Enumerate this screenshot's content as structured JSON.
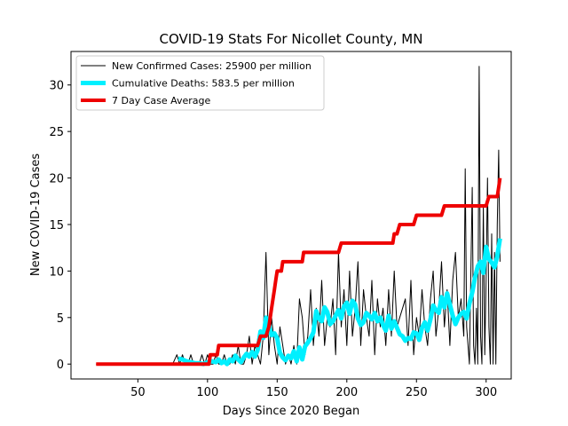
{
  "chart_data": {
    "type": "line",
    "title": "COVID-19 Stats For Nicollet County, MN",
    "xlabel": "Days Since 2020 Began",
    "ylabel": "New COVID-19 Cases",
    "xlim": [
      2,
      318
    ],
    "ylim": [
      -1.6,
      33.6
    ],
    "xticks": [
      50,
      100,
      150,
      200,
      250,
      300
    ],
    "yticks": [
      0,
      5,
      10,
      15,
      20,
      25,
      30
    ],
    "grid": false,
    "legend_position": "top-left",
    "series": [
      {
        "name": "New Confirmed Cases: 25900 per million",
        "color": "#000000",
        "x": [
          20,
          75,
          78,
          80,
          82,
          84,
          86,
          88,
          90,
          92,
          94,
          96,
          98,
          100,
          102,
          104,
          106,
          108,
          110,
          112,
          114,
          116,
          118,
          120,
          122,
          124,
          126,
          128,
          130,
          132,
          134,
          136,
          138,
          140,
          142,
          144,
          146,
          148,
          150,
          152,
          154,
          156,
          158,
          160,
          162,
          164,
          166,
          168,
          170,
          172,
          174,
          176,
          178,
          180,
          182,
          184,
          186,
          188,
          190,
          192,
          194,
          196,
          198,
          200,
          202,
          204,
          206,
          208,
          210,
          212,
          214,
          216,
          218,
          220,
          222,
          224,
          226,
          228,
          230,
          232,
          234,
          236,
          238,
          240,
          242,
          244,
          246,
          248,
          250,
          252,
          254,
          256,
          258,
          260,
          262,
          264,
          266,
          268,
          270,
          272,
          274,
          276,
          278,
          280,
          282,
          284,
          285,
          286,
          288,
          290,
          291,
          292,
          293,
          294,
          295,
          296,
          297,
          298,
          299,
          300,
          301,
          302,
          303,
          304,
          305,
          306,
          307,
          308,
          309,
          310
        ],
        "y": [
          0,
          0,
          1,
          0,
          1,
          0,
          0,
          1,
          0,
          0,
          0,
          1,
          0,
          1,
          0,
          0,
          1,
          0,
          0,
          1,
          0,
          0,
          1,
          0,
          2,
          0,
          0,
          1,
          3,
          0,
          2,
          1,
          0,
          3,
          12,
          1,
          5,
          2,
          0,
          4,
          2,
          0,
          1,
          0,
          2,
          0,
          7,
          5,
          1,
          3,
          8,
          2,
          6,
          3,
          9,
          2,
          5,
          4,
          7,
          1,
          12,
          4,
          8,
          2,
          10,
          3,
          6,
          11,
          2,
          8,
          5,
          3,
          9,
          1,
          7,
          4,
          6,
          2,
          8,
          3,
          10,
          4,
          5,
          6,
          7,
          2,
          9,
          1,
          5,
          3,
          8,
          4,
          2,
          7,
          10,
          3,
          6,
          11,
          4,
          8,
          2,
          9,
          12,
          5,
          7,
          3,
          21,
          4,
          0,
          19,
          2,
          0,
          6,
          0,
          32,
          3,
          0,
          17,
          1,
          9,
          20,
          4,
          0,
          14,
          0,
          12,
          0,
          15,
          23,
          11
        ]
      },
      {
        "name": "Cumulative Deaths: 583.5 per million",
        "color": "#00f0ff",
        "x": [
          79,
          82,
          85,
          88,
          91,
          94,
          97,
          100,
          103,
          106,
          108,
          110,
          112,
          114,
          116,
          118,
          120,
          122,
          124,
          126,
          128,
          130,
          132,
          134,
          136,
          138,
          140,
          142,
          144,
          146,
          148,
          150,
          152,
          154,
          156,
          158,
          160,
          162,
          164,
          166,
          168,
          170,
          172,
          174,
          176,
          178,
          180,
          182,
          184,
          186,
          188,
          190,
          192,
          194,
          196,
          198,
          200,
          202,
          204,
          206,
          208,
          210,
          212,
          214,
          216,
          218,
          220,
          222,
          224,
          226,
          228,
          230,
          232,
          234,
          236,
          238,
          240,
          242,
          244,
          246,
          248,
          250,
          252,
          254,
          256,
          258,
          260,
          262,
          264,
          266,
          268,
          270,
          272,
          274,
          276,
          278,
          280,
          282,
          284,
          286,
          288,
          290,
          292,
          294,
          296,
          298,
          300,
          302,
          304,
          306,
          308,
          310
        ],
        "y": [
          0.6,
          0.5,
          0.3,
          0.2,
          0.1,
          0.1,
          0.0,
          0.2,
          0.3,
          0.2,
          0.5,
          0.1,
          0.3,
          0.0,
          0.5,
          0.3,
          0.9,
          0.5,
          0.2,
          0.7,
          1.1,
          0.8,
          1.3,
          0.8,
          1.5,
          3.5,
          2.8,
          5.0,
          4.2,
          3.1,
          3.3,
          2.8,
          1.2,
          0.7,
          0.4,
          0.9,
          0.6,
          1.4,
          0.3,
          1.8,
          0.5,
          1.9,
          2.3,
          2.8,
          3.4,
          5.7,
          4.9,
          4.6,
          6.1,
          5.6,
          4.3,
          4.6,
          5.2,
          5.8,
          4.9,
          6.2,
          6.6,
          5.4,
          6.8,
          6.4,
          4.9,
          4.2,
          4.5,
          5.5,
          5.2,
          4.8,
          5.5,
          4.6,
          5.0,
          4.2,
          3.6,
          5.2,
          3.8,
          4.6,
          3.9,
          3.2,
          3.0,
          2.5,
          2.8,
          2.7,
          3.4,
          3.3,
          2.6,
          3.9,
          4.5,
          3.6,
          4.8,
          6.3,
          5.8,
          5.5,
          7.2,
          6.1,
          7.6,
          6.4,
          5.2,
          4.3,
          5.0,
          5.4,
          5.6,
          4.9,
          6.5,
          7.7,
          9.3,
          10.5,
          11.0,
          9.8,
          12.6,
          11.3,
          10.9,
          10.4,
          11.6,
          13.5
        ]
      },
      {
        "name": "7 Day Case Average",
        "color": "#ee0000",
        "x": [
          20,
          100,
          101,
          102,
          104,
          106,
          107,
          108,
          110,
          128,
          133,
          134,
          136,
          138,
          140,
          142,
          144,
          145,
          146,
          147,
          148,
          149,
          150,
          152,
          153,
          154,
          156,
          158,
          160,
          164,
          166,
          168,
          169,
          170,
          172,
          180,
          194,
          196,
          232,
          233,
          234,
          236,
          238,
          246,
          248,
          250,
          252,
          260,
          268,
          270,
          272,
          300,
          302,
          308,
          309,
          310
        ],
        "y": [
          0,
          0,
          0,
          1,
          1,
          1,
          1,
          2,
          2,
          2,
          2,
          2,
          2,
          3,
          3,
          3,
          4,
          5,
          6,
          7,
          8,
          9,
          10,
          10,
          10,
          11,
          11,
          11,
          11,
          11,
          11,
          11,
          12,
          12,
          12,
          12,
          12,
          13,
          13,
          13,
          14,
          14,
          15,
          15,
          15,
          16,
          16,
          16,
          16,
          17,
          17,
          17,
          18,
          18,
          19,
          20
        ]
      }
    ]
  }
}
